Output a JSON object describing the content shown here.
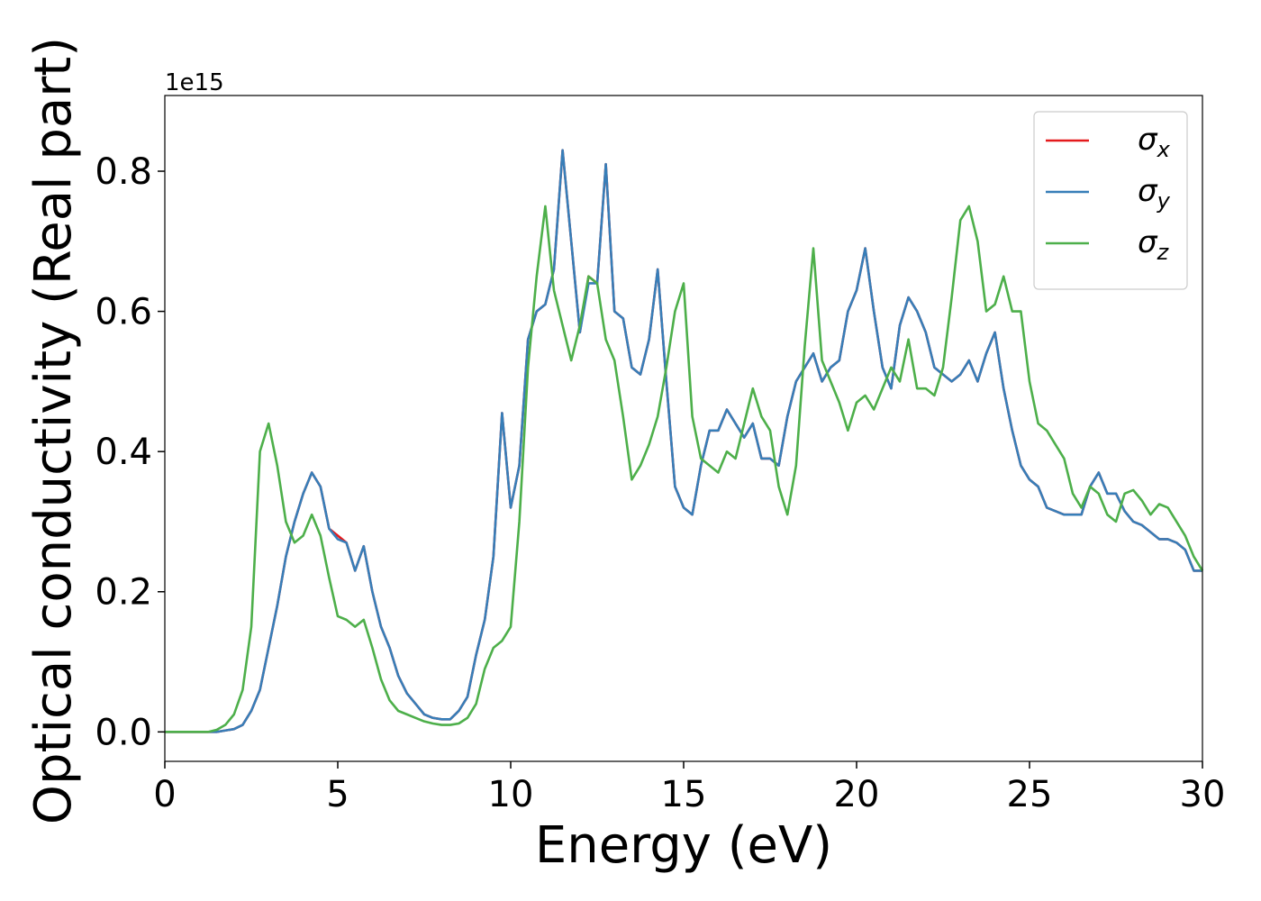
{
  "chart_data": {
    "type": "line",
    "xlabel": "Energy (eV)",
    "ylabel": "Optical conductivity (Real part)",
    "offset_label": "1e15",
    "xlim": [
      0,
      30
    ],
    "ylim": [
      -0.042,
      0.908
    ],
    "xticks": [
      0,
      5,
      10,
      15,
      20,
      25,
      30
    ],
    "yticks": [
      {
        "value": 0,
        "label": "0.0"
      },
      0.2,
      0.4,
      0.6,
      0.8
    ],
    "legend": "upper right",
    "x": [
      0,
      0.25,
      0.5,
      0.75,
      1,
      1.25,
      1.5,
      1.75,
      2,
      2.25,
      2.5,
      2.75,
      3,
      3.25,
      3.5,
      3.75,
      4,
      4.25,
      4.5,
      4.75,
      5,
      5.25,
      5.5,
      5.75,
      6,
      6.25,
      6.5,
      6.75,
      7,
      7.25,
      7.5,
      7.75,
      8,
      8.25,
      8.5,
      8.75,
      9,
      9.25,
      9.5,
      9.75,
      10,
      10.25,
      10.5,
      10.75,
      11,
      11.25,
      11.5,
      11.75,
      12,
      12.25,
      12.5,
      12.75,
      13,
      13.25,
      13.5,
      13.75,
      14,
      14.25,
      14.5,
      14.75,
      15,
      15.25,
      15.5,
      15.75,
      16,
      16.25,
      16.5,
      16.75,
      17,
      17.25,
      17.5,
      17.75,
      18,
      18.25,
      18.5,
      18.75,
      19,
      19.25,
      19.5,
      19.75,
      20,
      20.25,
      20.5,
      20.75,
      21,
      21.25,
      21.5,
      21.75,
      22,
      22.25,
      22.5,
      22.75,
      23,
      23.25,
      23.5,
      23.75,
      24,
      24.25,
      24.5,
      24.75,
      25,
      25.25,
      25.5,
      25.75,
      26,
      26.25,
      26.5,
      26.75,
      27,
      27.25,
      27.5,
      27.75,
      28,
      28.25,
      28.5,
      28.75,
      29,
      29.25,
      29.5,
      29.75,
      30
    ],
    "series": [
      {
        "name": "σx",
        "color": "#e41a1c",
        "values": [
          0,
          0,
          0,
          0,
          0,
          0,
          0,
          0.002,
          0.004,
          0.01,
          0.03,
          0.06,
          0.12,
          0.18,
          0.25,
          0.3,
          0.34,
          0.37,
          0.35,
          0.29,
          0.28,
          0.27,
          0.23,
          0.265,
          0.2,
          0.15,
          0.12,
          0.08,
          0.055,
          0.04,
          0.025,
          0.02,
          0.018,
          0.018,
          0.03,
          0.05,
          0.11,
          0.16,
          0.25,
          0.455,
          0.32,
          0.38,
          0.56,
          0.6,
          0.61,
          0.66,
          0.83,
          0.7,
          0.57,
          0.65,
          0.64,
          0.81,
          0.6,
          0.59,
          0.52,
          0.51,
          0.56,
          0.66,
          0.5,
          0.35,
          0.32,
          0.31,
          0.38,
          0.43,
          0.43,
          0.46,
          0.44,
          0.42,
          0.44,
          0.39,
          0.39,
          0.38,
          0.45,
          0.5,
          0.52,
          0.54,
          0.5,
          0.52,
          0.53,
          0.6,
          0.63,
          0.69,
          0.6,
          0.52,
          0.49,
          0.58,
          0.62,
          0.6,
          0.57,
          0.52,
          0.51,
          0.5,
          0.51,
          0.53,
          0.5,
          0.54,
          0.57,
          0.49,
          0.43,
          0.38,
          0.36,
          0.35,
          0.32,
          0.315,
          0.31,
          0.31,
          0.31,
          0.35,
          0.37,
          0.34,
          0.34,
          0.315,
          0.3,
          0.295,
          0.285,
          0.275,
          0.275,
          0.27,
          0.26,
          0.23,
          0.23
        ]
      },
      {
        "name": "σy",
        "color": "#377eb8",
        "values": [
          0,
          0,
          0,
          0,
          0,
          0,
          0,
          0.002,
          0.004,
          0.01,
          0.03,
          0.06,
          0.12,
          0.18,
          0.25,
          0.3,
          0.34,
          0.37,
          0.35,
          0.29,
          0.275,
          0.27,
          0.23,
          0.265,
          0.2,
          0.15,
          0.12,
          0.08,
          0.055,
          0.04,
          0.025,
          0.02,
          0.018,
          0.018,
          0.03,
          0.05,
          0.11,
          0.16,
          0.25,
          0.455,
          0.32,
          0.38,
          0.56,
          0.6,
          0.61,
          0.66,
          0.83,
          0.7,
          0.57,
          0.64,
          0.64,
          0.81,
          0.6,
          0.59,
          0.52,
          0.51,
          0.56,
          0.66,
          0.5,
          0.35,
          0.32,
          0.31,
          0.38,
          0.43,
          0.43,
          0.46,
          0.44,
          0.42,
          0.44,
          0.39,
          0.39,
          0.38,
          0.45,
          0.5,
          0.52,
          0.54,
          0.5,
          0.52,
          0.53,
          0.6,
          0.63,
          0.69,
          0.6,
          0.52,
          0.49,
          0.58,
          0.62,
          0.6,
          0.57,
          0.52,
          0.51,
          0.5,
          0.51,
          0.53,
          0.5,
          0.54,
          0.57,
          0.49,
          0.43,
          0.38,
          0.36,
          0.35,
          0.32,
          0.315,
          0.31,
          0.31,
          0.31,
          0.35,
          0.37,
          0.34,
          0.34,
          0.315,
          0.3,
          0.295,
          0.285,
          0.275,
          0.275,
          0.27,
          0.26,
          0.23,
          0.23
        ]
      },
      {
        "name": "σz",
        "color": "#4daf4a",
        "values": [
          0,
          0,
          0,
          0,
          0,
          0,
          0.003,
          0.01,
          0.025,
          0.06,
          0.15,
          0.4,
          0.44,
          0.38,
          0.3,
          0.27,
          0.28,
          0.31,
          0.28,
          0.22,
          0.165,
          0.16,
          0.15,
          0.16,
          0.12,
          0.075,
          0.045,
          0.03,
          0.025,
          0.02,
          0.015,
          0.012,
          0.01,
          0.01,
          0.012,
          0.02,
          0.04,
          0.09,
          0.12,
          0.13,
          0.15,
          0.3,
          0.52,
          0.65,
          0.75,
          0.63,
          0.58,
          0.53,
          0.58,
          0.65,
          0.64,
          0.56,
          0.53,
          0.45,
          0.36,
          0.38,
          0.41,
          0.45,
          0.52,
          0.6,
          0.64,
          0.45,
          0.39,
          0.38,
          0.37,
          0.4,
          0.39,
          0.44,
          0.49,
          0.45,
          0.43,
          0.35,
          0.31,
          0.38,
          0.55,
          0.69,
          0.53,
          0.5,
          0.47,
          0.43,
          0.47,
          0.48,
          0.46,
          0.49,
          0.52,
          0.5,
          0.56,
          0.49,
          0.49,
          0.48,
          0.52,
          0.62,
          0.73,
          0.75,
          0.7,
          0.6,
          0.61,
          0.65,
          0.6,
          0.6,
          0.5,
          0.44,
          0.43,
          0.41,
          0.39,
          0.34,
          0.32,
          0.35,
          0.34,
          0.31,
          0.3,
          0.34,
          0.345,
          0.33,
          0.31,
          0.325,
          0.32,
          0.3,
          0.28,
          0.25,
          0.23
        ]
      }
    ]
  }
}
